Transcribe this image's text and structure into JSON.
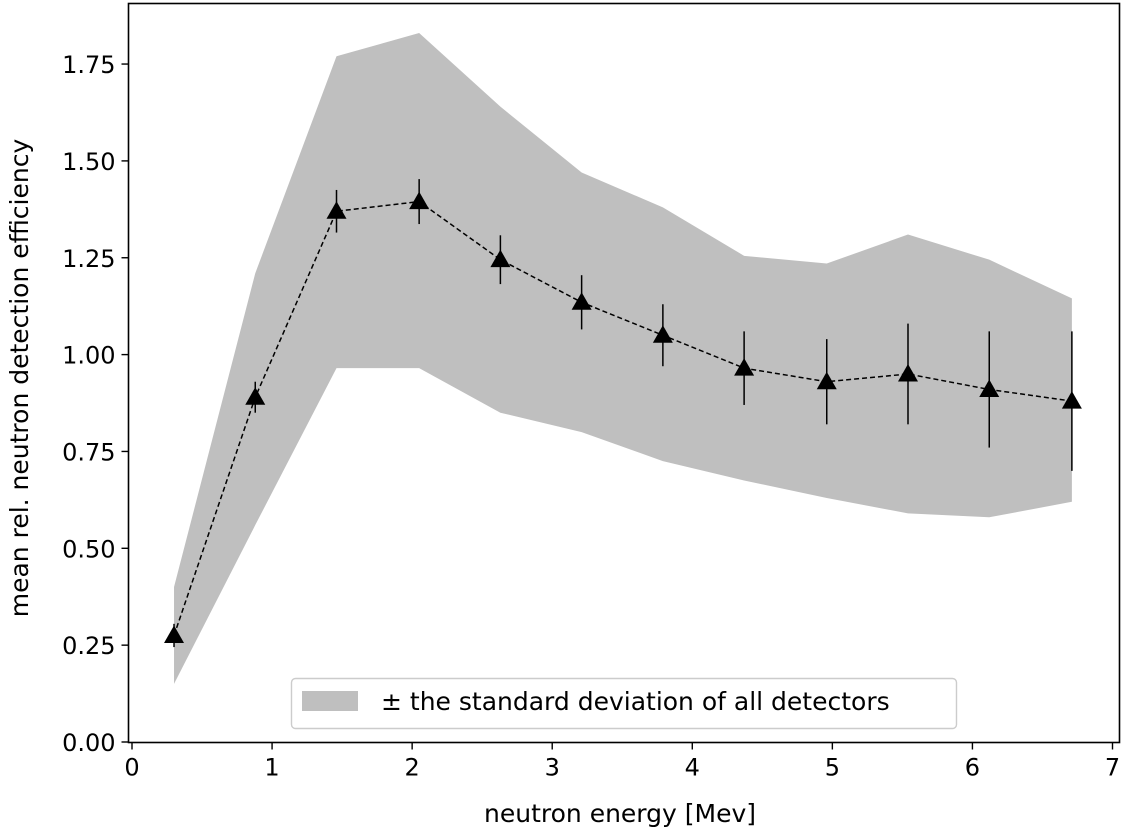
{
  "chart_data": {
    "type": "line",
    "title": "",
    "xlabel": "neutron energy [Mev]",
    "ylabel": "mean rel. neutron detection efficiency",
    "xlim": [
      0,
      7
    ],
    "ylim": [
      0,
      1.9
    ],
    "xticks": [
      0,
      1,
      2,
      3,
      4,
      5,
      6,
      7
    ],
    "xtick_labels": [
      "0",
      "1",
      "2",
      "3",
      "4",
      "5",
      "6",
      "7"
    ],
    "yticks": [
      0.0,
      0.25,
      0.5,
      0.75,
      1.0,
      1.25,
      1.5,
      1.75
    ],
    "ytick_labels": [
      "0.00",
      "0.25",
      "0.50",
      "0.75",
      "1.00",
      "1.25",
      "1.50",
      "1.75"
    ],
    "grid": false,
    "legend_position": "lower-center",
    "legend_label": "± the standard deviation of all detectors",
    "colors": {
      "band": "#bfbfbf",
      "series": "#000000",
      "frame": "#000000"
    },
    "x": [
      0.3,
      0.88,
      1.46,
      2.05,
      2.63,
      3.21,
      3.79,
      4.37,
      4.96,
      5.54,
      6.12,
      6.71
    ],
    "series": [
      {
        "marker": "triangle-up",
        "line_style": "dashed",
        "y": [
          0.275,
          0.89,
          1.37,
          1.395,
          1.245,
          1.135,
          1.05,
          0.965,
          0.93,
          0.95,
          0.91,
          0.88
        ],
        "yerr": [
          0.03,
          0.04,
          0.055,
          0.058,
          0.063,
          0.07,
          0.08,
          0.095,
          0.11,
          0.13,
          0.15,
          0.18
        ]
      }
    ],
    "band": {
      "lower": [
        0.15,
        0.56,
        0.965,
        0.965,
        0.85,
        0.8,
        0.725,
        0.675,
        0.63,
        0.59,
        0.58,
        0.62
      ],
      "upper": [
        0.4,
        1.21,
        1.77,
        1.83,
        1.64,
        1.47,
        1.38,
        1.255,
        1.235,
        1.31,
        1.245,
        1.145
      ]
    }
  }
}
